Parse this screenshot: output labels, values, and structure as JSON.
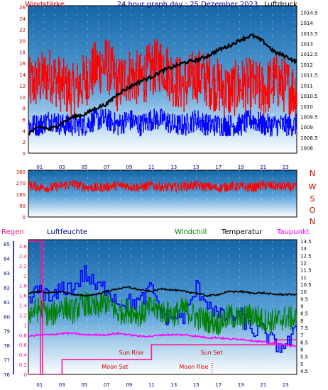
{
  "colors": {
    "wind": "#ff0000",
    "gust": "#0000ff",
    "pressure": "#000000",
    "humidity": "#0000ff",
    "windchill": "#008000",
    "temperature": "#000000",
    "dewpoint": "#ff00ff",
    "rain": "#ff1493",
    "sun": "#cc0000",
    "axis_dark": "#00008b"
  },
  "top_panel": {
    "title_left": "Windstärke",
    "title_center": "24 hour graph day : 25 Dezember 2023",
    "title_right": "Luftdruck"
  },
  "mid_panel": {
    "compass": [
      "N",
      "W",
      "S",
      "O",
      "N"
    ]
  },
  "bottom_panel": {
    "legend": {
      "rain": "Regen",
      "humidity": "Luftfeuchte",
      "windchill": "Windchill",
      "temperature": "Temperatur",
      "dewpoint": "Taupunkt"
    },
    "events": {
      "sun_rise": "Sun Rise",
      "sun_set": "Sun Set",
      "moon_set": "Moon Set",
      "moon_rise": "Moon Rise"
    }
  },
  "chart_data": [
    {
      "type": "line",
      "x_unit": "hour",
      "xlim": [
        0,
        24
      ],
      "x_ticks": [
        "01",
        "03",
        "05",
        "07",
        "09",
        "11",
        "13",
        "15",
        "17",
        "19",
        "21",
        "23"
      ],
      "y_left_ticks": [
        "0",
        "2",
        "4",
        "6",
        "8",
        "10",
        "12",
        "14",
        "16",
        "18",
        "20",
        "22",
        "24",
        "26"
      ],
      "y_left_range": [
        0,
        26
      ],
      "y_right_ticks": [
        "1008",
        "1008.5",
        "1009",
        "1009.5",
        "1010",
        "1010.5",
        "1011",
        "1011.5",
        "1012",
        "1012.5",
        "1013",
        "1013.5",
        "1014",
        "1014.5"
      ],
      "y_right_range": [
        1007.75,
        1014.75
      ],
      "series": [
        {
          "key": "wind",
          "axis": "left",
          "x": [
            0,
            1,
            2,
            3,
            4,
            5,
            6,
            7,
            8,
            9,
            10,
            11,
            12,
            13,
            14,
            15,
            16,
            17,
            18,
            19,
            20,
            21,
            22,
            23,
            24
          ],
          "y": [
            12,
            13,
            14,
            12,
            11,
            13,
            15,
            16,
            12,
            14,
            13,
            15,
            16,
            13,
            12,
            14,
            13,
            12,
            11,
            12,
            12,
            11,
            13,
            12,
            11
          ]
        },
        {
          "key": "gust",
          "axis": "left",
          "x": [
            0,
            1,
            2,
            3,
            4,
            5,
            6,
            7,
            8,
            9,
            10,
            11,
            12,
            13,
            14,
            15,
            16,
            17,
            18,
            19,
            20,
            21,
            22,
            23,
            24
          ],
          "y": [
            5,
            5,
            6,
            5,
            5,
            5,
            6,
            6,
            5,
            6,
            5,
            6,
            6,
            5,
            5,
            6,
            5,
            5,
            5,
            5,
            6,
            5,
            5,
            5,
            5
          ]
        },
        {
          "key": "pressure",
          "axis": "right",
          "x": [
            0,
            1,
            2,
            3,
            4,
            5,
            6,
            7,
            8,
            9,
            10,
            11,
            12,
            13,
            14,
            15,
            16,
            17,
            18,
            19,
            20,
            21,
            22,
            23,
            24
          ],
          "y": [
            1008.7,
            1009.0,
            1008.9,
            1009.2,
            1009.5,
            1009.6,
            1009.9,
            1010.1,
            1010.6,
            1010.9,
            1011.2,
            1011.4,
            1011.7,
            1011.9,
            1012.1,
            1012.2,
            1012.4,
            1012.7,
            1012.9,
            1013.2,
            1013.4,
            1013.1,
            1012.6,
            1012.4,
            1012.1
          ]
        }
      ]
    },
    {
      "type": "line",
      "x_unit": "hour",
      "xlim": [
        0,
        24
      ],
      "y_ticks": [
        "0",
        "90",
        "180",
        "270",
        "360"
      ],
      "y_range": [
        0,
        360
      ],
      "series": [
        {
          "key": "wind_direction",
          "x": [
            0,
            1,
            2,
            3,
            4,
            5,
            6,
            7,
            8,
            9,
            10,
            11,
            12,
            13,
            14,
            15,
            16,
            17,
            18,
            19,
            20,
            21,
            22,
            23,
            24
          ],
          "y": [
            250,
            240,
            230,
            250,
            260,
            240,
            230,
            240,
            250,
            245,
            235,
            250,
            240,
            235,
            245,
            250,
            240,
            230,
            245,
            240,
            235,
            250,
            245,
            240,
            230
          ]
        }
      ]
    },
    {
      "type": "line",
      "x_unit": "hour",
      "xlim": [
        0,
        24
      ],
      "y_left_ticks": [
        "0",
        "0.2",
        "0.4",
        "0.6",
        "0.8",
        "1",
        "1.2",
        "1.4",
        "1.6",
        "1.8",
        "2",
        "2.2",
        "2.4",
        "2.6"
      ],
      "y_left_range": [
        0,
        2.7
      ],
      "y_humidity_ticks": [
        "76",
        "77",
        "78",
        "79",
        "80",
        "81",
        "82",
        "83",
        "84",
        "85"
      ],
      "y_humidity_range": [
        76,
        85.2
      ],
      "y_right_ticks": [
        "4.5",
        "5",
        "5.5",
        "6",
        "6.5",
        "7",
        "7.5",
        "8",
        "8.5",
        "9",
        "9.5",
        "10",
        "10.5",
        "11",
        "11.5",
        "12",
        "12.5",
        "13",
        "13.5"
      ],
      "y_right_range": [
        4.25,
        13.5
      ],
      "series": [
        {
          "key": "rain",
          "axis": "left",
          "x": [
            0,
            1,
            2,
            3,
            3.01,
            5,
            6,
            7,
            8,
            9,
            10,
            11,
            11.01,
            13,
            15,
            17,
            19,
            21,
            22,
            22.01,
            23,
            24
          ],
          "y": [
            0,
            0,
            0,
            0,
            0.3,
            0.3,
            0.3,
            0.3,
            0.3,
            0.3,
            0.3,
            0.3,
            0.6,
            0.6,
            0.6,
            0.6,
            0.6,
            0.6,
            0.6,
            0.7,
            0.7,
            0.7
          ]
        },
        {
          "key": "humidity",
          "axis": "humidity",
          "x": [
            0,
            1,
            2,
            3,
            4,
            5,
            6,
            7,
            8,
            9,
            10,
            11,
            12,
            13,
            14,
            15,
            16,
            17,
            18,
            19,
            20,
            21,
            22,
            23,
            24
          ],
          "y": [
            81,
            82,
            81,
            82,
            82,
            83,
            82,
            82,
            81,
            81,
            81,
            82,
            80,
            80,
            80,
            82,
            81,
            80,
            80,
            80,
            79,
            79,
            78,
            78,
            79
          ]
        },
        {
          "key": "windchill",
          "axis": "right",
          "x": [
            0,
            1,
            2,
            3,
            4,
            5,
            6,
            7,
            8,
            9,
            10,
            11,
            12,
            13,
            14,
            15,
            16,
            17,
            18,
            19,
            20,
            21,
            22,
            23,
            24
          ],
          "y": [
            8.5,
            8.8,
            8.3,
            9.0,
            8.6,
            9.2,
            8.8,
            9.3,
            8.5,
            8.7,
            8.4,
            8.9,
            8.6,
            8.4,
            8.8,
            8.2,
            8.0,
            7.8,
            8.3,
            8.1,
            8.4,
            8.0,
            7.9,
            8.2,
            8.0
          ]
        },
        {
          "key": "temperature",
          "axis": "right",
          "x": [
            0,
            1,
            2,
            3,
            4,
            5,
            6,
            7,
            8,
            9,
            10,
            11,
            12,
            13,
            14,
            15,
            16,
            17,
            18,
            19,
            20,
            21,
            22,
            23,
            24
          ],
          "y": [
            9.9,
            10.0,
            9.9,
            10.0,
            9.8,
            9.7,
            9.8,
            10.0,
            10.2,
            10.3,
            10.1,
            10.0,
            10.2,
            10.1,
            10.0,
            9.9,
            9.7,
            9.8,
            10.0,
            10.0,
            9.9,
            9.9,
            9.8,
            9.8,
            9.8
          ]
        },
        {
          "key": "dewpoint",
          "axis": "right",
          "x": [
            0,
            1,
            2,
            3,
            4,
            5,
            6,
            7,
            8,
            9,
            10,
            11,
            12,
            13,
            14,
            15,
            16,
            17,
            18,
            19,
            20,
            21,
            22,
            23,
            24
          ],
          "y": [
            6.9,
            7.0,
            7.0,
            7.1,
            7.1,
            7.0,
            7.0,
            7.0,
            7.1,
            7.0,
            6.9,
            6.9,
            7.0,
            7.0,
            7.0,
            6.9,
            6.8,
            6.8,
            6.7,
            6.7,
            6.6,
            6.5,
            6.4,
            6.3,
            6.2
          ]
        }
      ]
    }
  ]
}
